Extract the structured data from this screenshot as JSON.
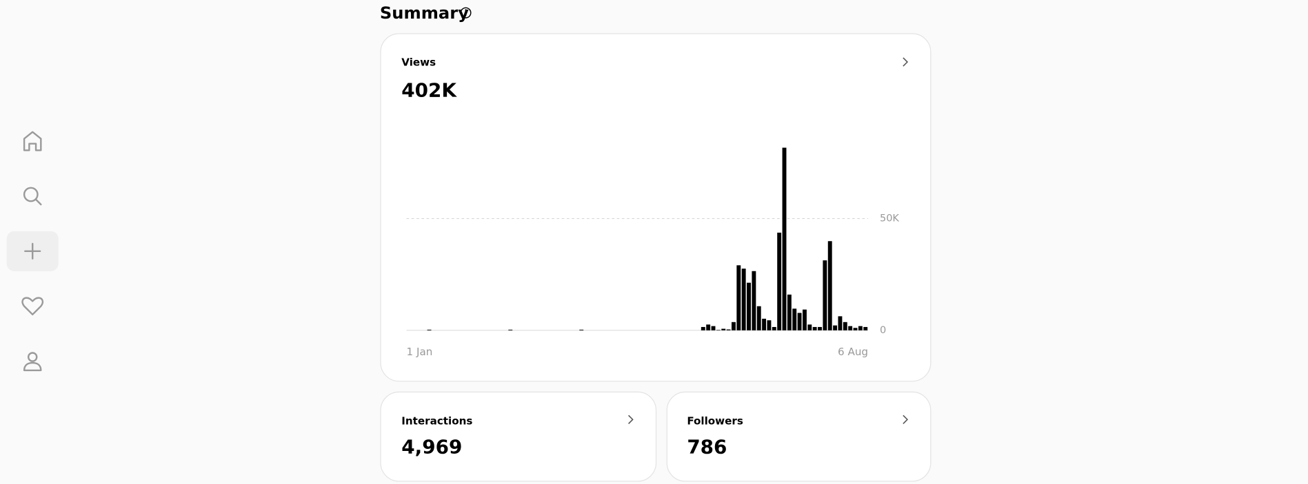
{
  "header": {
    "title": "Summary"
  },
  "cards": [
    {
      "label": "Views",
      "value": "402K"
    },
    {
      "label": "Interactions",
      "value": "4,969"
    },
    {
      "label": "Followers",
      "value": "786"
    }
  ],
  "chart_data": {
    "type": "bar",
    "color": "#000000",
    "grid": true,
    "xlabels": [
      "1 Jan",
      "6 Aug"
    ],
    "ylim": [
      0,
      85000
    ],
    "yticks": [
      0,
      {
        "value": 50000,
        "label": "50K"
      }
    ],
    "values": [
      0,
      0,
      0,
      0,
      300,
      0,
      0,
      0,
      0,
      0,
      0,
      0,
      0,
      0,
      0,
      0,
      0,
      0,
      0,
      0,
      300,
      0,
      0,
      0,
      0,
      0,
      0,
      0,
      0,
      0,
      0,
      0,
      0,
      0,
      300,
      0,
      0,
      0,
      0,
      0,
      0,
      0,
      0,
      0,
      0,
      0,
      0,
      0,
      0,
      0,
      0,
      0,
      0,
      0,
      0,
      0,
      0,
      0,
      1500,
      2600,
      1900,
      200,
      700,
      400,
      3700,
      29100,
      27600,
      21300,
      26500,
      10800,
      5200,
      4500,
      1500,
      43700,
      81700,
      16000,
      9700,
      7800,
      9300,
      2600,
      1500,
      1500,
      31300,
      39900,
      2200,
      6300,
      3700,
      1900,
      1100,
      1900,
      1500
    ]
  }
}
